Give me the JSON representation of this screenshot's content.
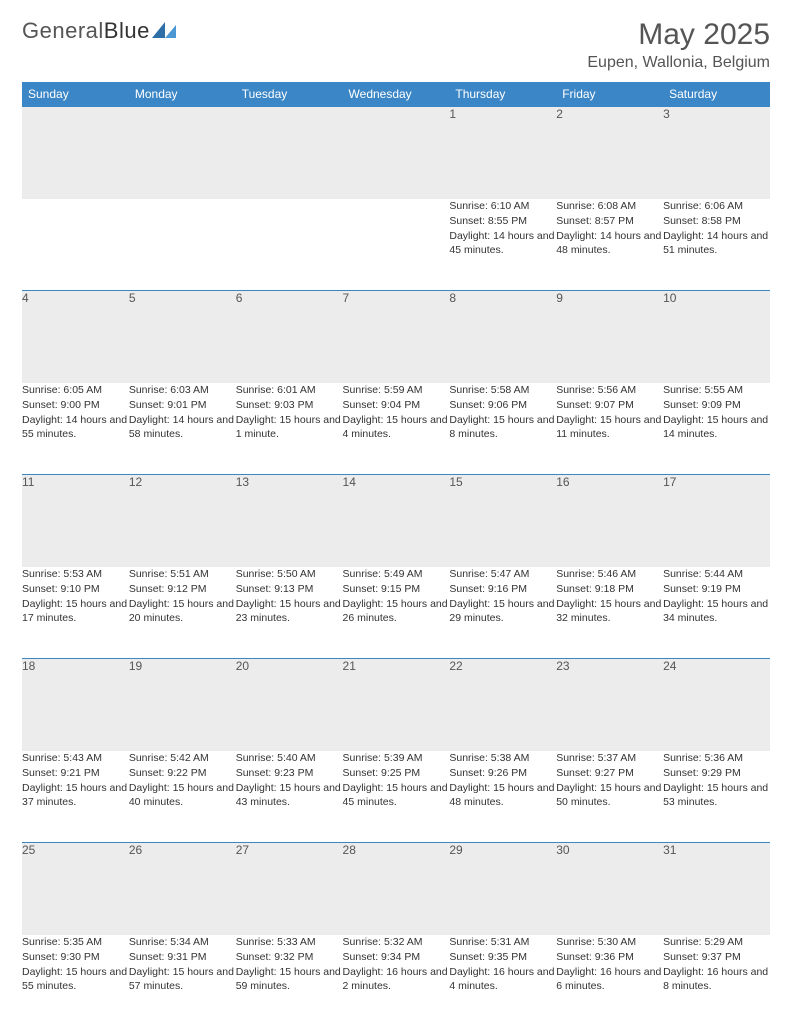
{
  "brand": {
    "name_part1": "General",
    "name_part2": "Blue"
  },
  "title": "May 2025",
  "location": "Eupen, Wallonia, Belgium",
  "colors": {
    "header_bg": "#3b86c6",
    "header_text": "#ffffff",
    "daynum_bg": "#ececec",
    "border": "#3b86c6",
    "text": "#333333",
    "logo_accent": "#2f6fa8"
  },
  "weekdays": [
    "Sunday",
    "Monday",
    "Tuesday",
    "Wednesday",
    "Thursday",
    "Friday",
    "Saturday"
  ],
  "weeks": [
    [
      null,
      null,
      null,
      null,
      {
        "n": "1",
        "sunrise": "Sunrise: 6:10 AM",
        "sunset": "Sunset: 8:55 PM",
        "daylight": "Daylight: 14 hours and 45 minutes."
      },
      {
        "n": "2",
        "sunrise": "Sunrise: 6:08 AM",
        "sunset": "Sunset: 8:57 PM",
        "daylight": "Daylight: 14 hours and 48 minutes."
      },
      {
        "n": "3",
        "sunrise": "Sunrise: 6:06 AM",
        "sunset": "Sunset: 8:58 PM",
        "daylight": "Daylight: 14 hours and 51 minutes."
      }
    ],
    [
      {
        "n": "4",
        "sunrise": "Sunrise: 6:05 AM",
        "sunset": "Sunset: 9:00 PM",
        "daylight": "Daylight: 14 hours and 55 minutes."
      },
      {
        "n": "5",
        "sunrise": "Sunrise: 6:03 AM",
        "sunset": "Sunset: 9:01 PM",
        "daylight": "Daylight: 14 hours and 58 minutes."
      },
      {
        "n": "6",
        "sunrise": "Sunrise: 6:01 AM",
        "sunset": "Sunset: 9:03 PM",
        "daylight": "Daylight: 15 hours and 1 minute."
      },
      {
        "n": "7",
        "sunrise": "Sunrise: 5:59 AM",
        "sunset": "Sunset: 9:04 PM",
        "daylight": "Daylight: 15 hours and 4 minutes."
      },
      {
        "n": "8",
        "sunrise": "Sunrise: 5:58 AM",
        "sunset": "Sunset: 9:06 PM",
        "daylight": "Daylight: 15 hours and 8 minutes."
      },
      {
        "n": "9",
        "sunrise": "Sunrise: 5:56 AM",
        "sunset": "Sunset: 9:07 PM",
        "daylight": "Daylight: 15 hours and 11 minutes."
      },
      {
        "n": "10",
        "sunrise": "Sunrise: 5:55 AM",
        "sunset": "Sunset: 9:09 PM",
        "daylight": "Daylight: 15 hours and 14 minutes."
      }
    ],
    [
      {
        "n": "11",
        "sunrise": "Sunrise: 5:53 AM",
        "sunset": "Sunset: 9:10 PM",
        "daylight": "Daylight: 15 hours and 17 minutes."
      },
      {
        "n": "12",
        "sunrise": "Sunrise: 5:51 AM",
        "sunset": "Sunset: 9:12 PM",
        "daylight": "Daylight: 15 hours and 20 minutes."
      },
      {
        "n": "13",
        "sunrise": "Sunrise: 5:50 AM",
        "sunset": "Sunset: 9:13 PM",
        "daylight": "Daylight: 15 hours and 23 minutes."
      },
      {
        "n": "14",
        "sunrise": "Sunrise: 5:49 AM",
        "sunset": "Sunset: 9:15 PM",
        "daylight": "Daylight: 15 hours and 26 minutes."
      },
      {
        "n": "15",
        "sunrise": "Sunrise: 5:47 AM",
        "sunset": "Sunset: 9:16 PM",
        "daylight": "Daylight: 15 hours and 29 minutes."
      },
      {
        "n": "16",
        "sunrise": "Sunrise: 5:46 AM",
        "sunset": "Sunset: 9:18 PM",
        "daylight": "Daylight: 15 hours and 32 minutes."
      },
      {
        "n": "17",
        "sunrise": "Sunrise: 5:44 AM",
        "sunset": "Sunset: 9:19 PM",
        "daylight": "Daylight: 15 hours and 34 minutes."
      }
    ],
    [
      {
        "n": "18",
        "sunrise": "Sunrise: 5:43 AM",
        "sunset": "Sunset: 9:21 PM",
        "daylight": "Daylight: 15 hours and 37 minutes."
      },
      {
        "n": "19",
        "sunrise": "Sunrise: 5:42 AM",
        "sunset": "Sunset: 9:22 PM",
        "daylight": "Daylight: 15 hours and 40 minutes."
      },
      {
        "n": "20",
        "sunrise": "Sunrise: 5:40 AM",
        "sunset": "Sunset: 9:23 PM",
        "daylight": "Daylight: 15 hours and 43 minutes."
      },
      {
        "n": "21",
        "sunrise": "Sunrise: 5:39 AM",
        "sunset": "Sunset: 9:25 PM",
        "daylight": "Daylight: 15 hours and 45 minutes."
      },
      {
        "n": "22",
        "sunrise": "Sunrise: 5:38 AM",
        "sunset": "Sunset: 9:26 PM",
        "daylight": "Daylight: 15 hours and 48 minutes."
      },
      {
        "n": "23",
        "sunrise": "Sunrise: 5:37 AM",
        "sunset": "Sunset: 9:27 PM",
        "daylight": "Daylight: 15 hours and 50 minutes."
      },
      {
        "n": "24",
        "sunrise": "Sunrise: 5:36 AM",
        "sunset": "Sunset: 9:29 PM",
        "daylight": "Daylight: 15 hours and 53 minutes."
      }
    ],
    [
      {
        "n": "25",
        "sunrise": "Sunrise: 5:35 AM",
        "sunset": "Sunset: 9:30 PM",
        "daylight": "Daylight: 15 hours and 55 minutes."
      },
      {
        "n": "26",
        "sunrise": "Sunrise: 5:34 AM",
        "sunset": "Sunset: 9:31 PM",
        "daylight": "Daylight: 15 hours and 57 minutes."
      },
      {
        "n": "27",
        "sunrise": "Sunrise: 5:33 AM",
        "sunset": "Sunset: 9:32 PM",
        "daylight": "Daylight: 15 hours and 59 minutes."
      },
      {
        "n": "28",
        "sunrise": "Sunrise: 5:32 AM",
        "sunset": "Sunset: 9:34 PM",
        "daylight": "Daylight: 16 hours and 2 minutes."
      },
      {
        "n": "29",
        "sunrise": "Sunrise: 5:31 AM",
        "sunset": "Sunset: 9:35 PM",
        "daylight": "Daylight: 16 hours and 4 minutes."
      },
      {
        "n": "30",
        "sunrise": "Sunrise: 5:30 AM",
        "sunset": "Sunset: 9:36 PM",
        "daylight": "Daylight: 16 hours and 6 minutes."
      },
      {
        "n": "31",
        "sunrise": "Sunrise: 5:29 AM",
        "sunset": "Sunset: 9:37 PM",
        "daylight": "Daylight: 16 hours and 8 minutes."
      }
    ]
  ]
}
